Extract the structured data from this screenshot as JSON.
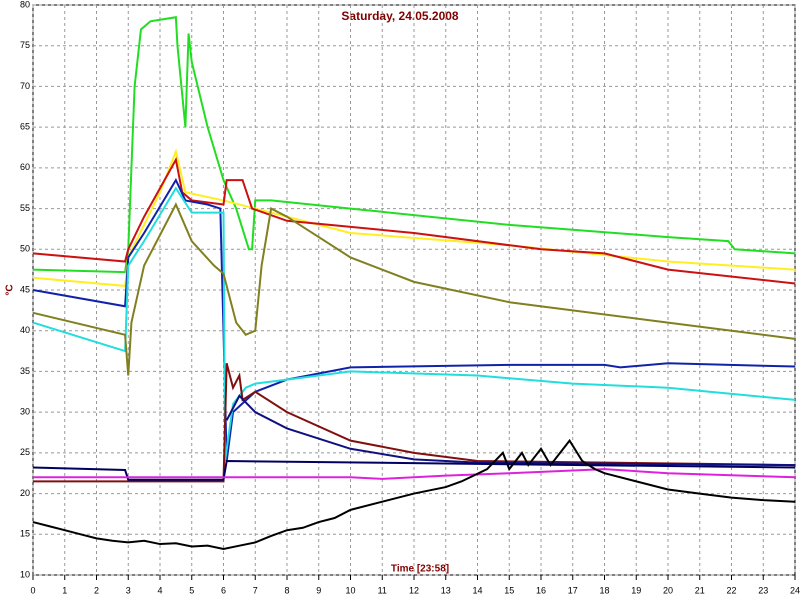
{
  "chart_data": {
    "type": "line",
    "title": "Saturday, 24.05.2008",
    "x_label": "Time [23:58]",
    "y_label": "°C",
    "xlim": [
      0,
      24
    ],
    "ylim": [
      10,
      80
    ],
    "xticks": [
      0,
      1,
      2,
      3,
      4,
      5,
      6,
      7,
      8,
      9,
      10,
      11,
      12,
      13,
      14,
      15,
      16,
      17,
      18,
      19,
      20,
      21,
      22,
      23,
      24
    ],
    "yticks": [
      10,
      15,
      20,
      25,
      30,
      35,
      40,
      45,
      50,
      55,
      60,
      65,
      70,
      75,
      80
    ],
    "grid": true,
    "series": [
      {
        "color": "#22dd22",
        "x": [
          0,
          2.9,
          3.0,
          3.2,
          3.4,
          3.7,
          4.5,
          4.55,
          4.8,
          4.9,
          5.0,
          5.5,
          6.0,
          6.4,
          6.8,
          6.9,
          7.0,
          7.5,
          10,
          15,
          20,
          21.9,
          22.1,
          24
        ],
        "values": [
          47.5,
          47.2,
          50,
          70,
          77,
          78,
          78.5,
          75,
          65,
          76.5,
          73,
          65,
          58.5,
          55,
          50,
          50,
          56,
          56,
          55,
          53,
          51.5,
          51,
          50,
          49.5
        ]
      },
      {
        "color": "#ffee22",
        "x": [
          0,
          2.9,
          3.0,
          4.0,
          4.5,
          4.8,
          6.0,
          7,
          10,
          15,
          20,
          24
        ],
        "values": [
          46.5,
          45.5,
          49,
          57,
          62,
          57,
          56,
          55,
          52,
          50.5,
          48.5,
          47.5
        ]
      },
      {
        "color": "#cc1111",
        "x": [
          0,
          2.9,
          3.0,
          3.5,
          4.5,
          4.7,
          5.0,
          6.0,
          6.1,
          6.6,
          6.9,
          8,
          12,
          16,
          18,
          20,
          24
        ],
        "values": [
          49.5,
          48.5,
          50,
          54,
          61,
          57,
          56,
          55.5,
          58.5,
          58.5,
          55,
          53.5,
          52,
          50,
          49.5,
          47.5,
          45.8
        ]
      },
      {
        "color": "#1122aa",
        "x": [
          0,
          2.9,
          3.0,
          3.5,
          4.5,
          4.8,
          5.5,
          5.9,
          6.0,
          6.1,
          6.3,
          7,
          8,
          10,
          15,
          18,
          18.5,
          20,
          24
        ],
        "values": [
          45,
          43,
          49,
          52,
          58.5,
          56,
          55.5,
          55,
          40,
          24,
          30,
          32.5,
          34,
          35.5,
          35.8,
          35.8,
          35.5,
          36,
          35.6
        ]
      },
      {
        "color": "#22dddd",
        "x": [
          0,
          2.9,
          3.0,
          3.5,
          4.5,
          5,
          6,
          6.05,
          6.3,
          6.7,
          7,
          8,
          10,
          14,
          17,
          20,
          24
        ],
        "values": [
          41,
          37.5,
          48,
          51,
          57.5,
          54.5,
          54.5,
          24,
          31,
          33,
          33.5,
          34,
          35,
          34.5,
          33.5,
          33,
          31.5
        ]
      },
      {
        "color": "#808020",
        "x": [
          0,
          2.9,
          3.0,
          3.1,
          3.5,
          4.5,
          5.0,
          5.7,
          6.0,
          6.4,
          6.7,
          7.0,
          7.2,
          7.5,
          8,
          10,
          12,
          15,
          20,
          24
        ],
        "values": [
          42.2,
          39.5,
          34.5,
          41,
          48,
          55.5,
          51,
          48,
          47,
          41,
          39.5,
          40,
          48,
          55,
          54,
          49,
          46,
          43.5,
          41,
          39
        ]
      },
      {
        "color": "#801010",
        "x": [
          0,
          2.9,
          6.0,
          6.1,
          6.3,
          6.5,
          6.6,
          7,
          8,
          10,
          12,
          14,
          24
        ],
        "values": [
          21.5,
          21.5,
          21.5,
          36,
          33,
          34.5,
          31.5,
          32.5,
          30,
          26.5,
          25,
          24,
          23.5
        ]
      },
      {
        "color": "#101080",
        "x": [
          6.1,
          6.5,
          7,
          8,
          10,
          12,
          14,
          24
        ],
        "values": [
          29,
          32,
          30,
          28,
          25.5,
          24.2,
          23.8,
          23.5
        ]
      },
      {
        "color": "#000060",
        "x": [
          0,
          2.9,
          3,
          6,
          6.1,
          24
        ],
        "values": [
          23.2,
          22.9,
          21.7,
          21.7,
          24,
          23.2
        ]
      },
      {
        "color": "#dd22dd",
        "x": [
          0,
          10,
          11,
          13,
          15,
          18,
          20,
          24
        ],
        "values": [
          22,
          22,
          21.8,
          22.2,
          22.5,
          23,
          22.5,
          22
        ]
      },
      {
        "color": "#000000",
        "x": [
          0,
          0.5,
          1,
          1.5,
          2,
          2.5,
          3,
          3.5,
          4,
          4.5,
          5,
          5.5,
          6,
          6.5,
          7,
          7.5,
          8,
          8.5,
          9,
          9.5,
          10,
          11,
          12,
          13,
          13.5,
          14.3,
          14.8,
          15,
          15.4,
          15.6,
          16,
          16.3,
          16.9,
          17.3,
          17.7,
          18,
          19,
          20,
          21,
          22,
          23,
          24
        ],
        "values": [
          16.5,
          16,
          15.5,
          15,
          14.5,
          14.2,
          14,
          14.2,
          13.8,
          13.9,
          13.5,
          13.6,
          13.2,
          13.6,
          14,
          14.8,
          15.5,
          15.8,
          16.5,
          17,
          18,
          19,
          20,
          20.8,
          21.5,
          23,
          25,
          23,
          25,
          23.5,
          25.5,
          23.5,
          26.5,
          24,
          23,
          22.5,
          21.5,
          20.5,
          20,
          19.5,
          19.2,
          19
        ]
      }
    ]
  }
}
